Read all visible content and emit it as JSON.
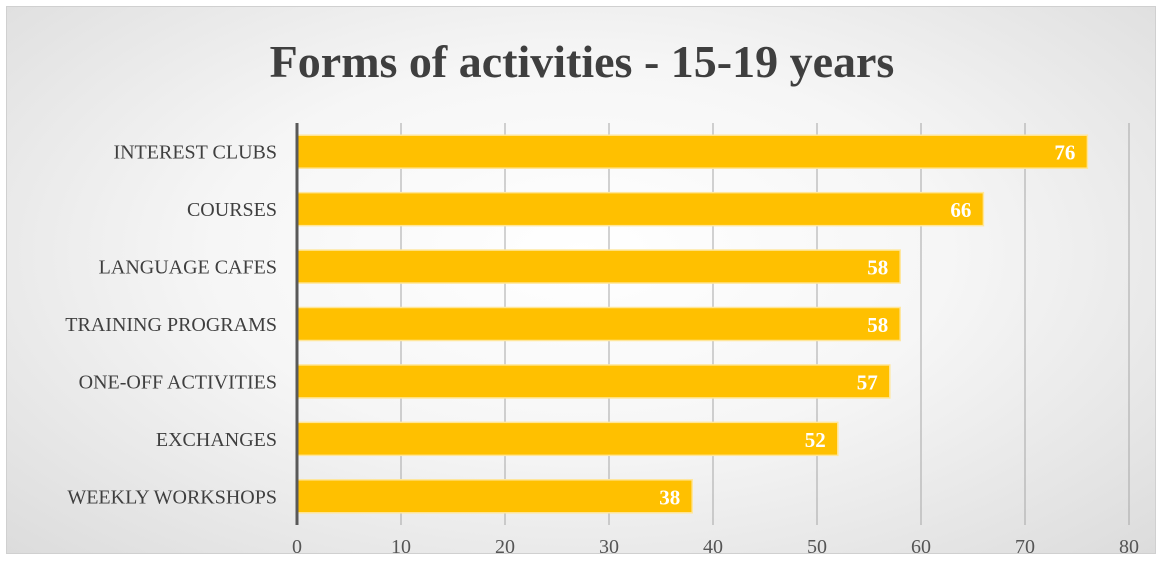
{
  "chart_data": {
    "type": "bar",
    "orientation": "horizontal",
    "title": "Forms of activities - 15-19 years",
    "categories": [
      "INTEREST CLUBS",
      "COURSES",
      "LANGUAGE CAFES",
      "TRAINING PROGRAMS",
      "ONE-OFF ACTIVITIES",
      "EXCHANGES",
      "WEEKLY WORKSHOPS"
    ],
    "values": [
      76,
      66,
      58,
      58,
      57,
      52,
      38
    ],
    "xlim": [
      0,
      80
    ],
    "xticks": [
      "0",
      "10",
      "20",
      "30",
      "40",
      "50",
      "60",
      "70",
      "80"
    ],
    "grid": "vertical",
    "legend": "none",
    "colors": {
      "bar": "#FFC000",
      "bar_edge": "#FFE699",
      "data_label": "#FFFFFF",
      "axis": "#595959",
      "grid": "#A6A6A6"
    }
  }
}
